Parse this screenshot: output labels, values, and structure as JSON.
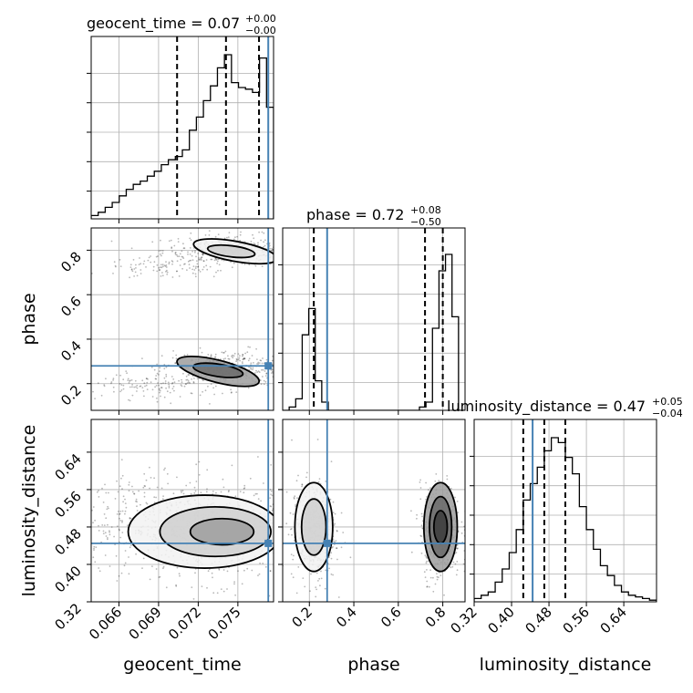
{
  "chart_data": {
    "type": "corner",
    "parameters": [
      "geocent_time",
      "phase",
      "luminosity_distance"
    ],
    "truth_color": "#4682b4",
    "titles": [
      {
        "param": "geocent_time",
        "label": "geocent_time = 0.07",
        "plus": "+0.00",
        "minus": "−0.00"
      },
      {
        "param": "phase",
        "label": "phase = 0.72",
        "plus": "+0.08",
        "minus": "−0.50"
      },
      {
        "param": "luminosity_distance",
        "label": "luminosity_distance = 0.47",
        "plus": "+0.05",
        "minus": "−0.04"
      }
    ],
    "axes": {
      "geocent_time": {
        "range": [
          0.0639,
          0.0777
        ],
        "ticks": [
          0.066,
          0.069,
          0.072,
          0.075
        ],
        "tick_labels": [
          "0.066",
          "0.069",
          "0.072",
          "0.075"
        ],
        "truth": 0.0773,
        "quantiles": [
          0.0704,
          0.0741,
          0.0766
        ]
      },
      "phase": {
        "range": [
          0.08,
          0.9
        ],
        "ticks": [
          0.2,
          0.4,
          0.6,
          0.8
        ],
        "tick_labels": [
          "0.2",
          "0.4",
          "0.6",
          "0.8"
        ],
        "truth": 0.28,
        "quantiles": [
          0.22,
          0.72,
          0.8
        ]
      },
      "luminosity_distance": {
        "range": [
          0.32,
          0.71
        ],
        "ticks": [
          0.32,
          0.4,
          0.48,
          0.56,
          0.64
        ],
        "tick_labels": [
          "0.32",
          "0.40",
          "0.48",
          "0.56",
          "0.64"
        ],
        "truth": 0.445,
        "quantiles": [
          0.425,
          0.47,
          0.515
        ]
      }
    },
    "histograms": {
      "geocent_time": [
        0.02,
        0.04,
        0.07,
        0.1,
        0.14,
        0.18,
        0.21,
        0.23,
        0.26,
        0.29,
        0.33,
        0.36,
        0.38,
        0.42,
        0.54,
        0.62,
        0.72,
        0.81,
        0.92,
        1.0,
        0.83,
        0.8,
        0.79,
        0.77,
        0.98,
        0.68
      ],
      "phase": [
        0.0,
        0.02,
        0.07,
        0.46,
        0.62,
        0.18,
        0.05,
        0.0,
        0.0,
        0.0,
        0.0,
        0.0,
        0.0,
        0.0,
        0.0,
        0.0,
        0.0,
        0.0,
        0.0,
        0.0,
        0.0,
        0.02,
        0.05,
        0.5,
        0.85,
        0.95,
        0.57,
        0.0
      ],
      "luminosity_distance": [
        0.02,
        0.04,
        0.06,
        0.12,
        0.2,
        0.3,
        0.44,
        0.62,
        0.72,
        0.82,
        0.92,
        1.0,
        0.97,
        0.88,
        0.78,
        0.58,
        0.44,
        0.32,
        0.22,
        0.16,
        0.1,
        0.06,
        0.04,
        0.03,
        0.02,
        0.01
      ]
    },
    "hist_yticks": [
      0.16,
      0.33,
      0.5,
      0.67,
      0.84
    ],
    "clusters": {
      "geocent_time_vs_phase": [
        {
          "x": 0.0745,
          "y": 0.8,
          "sx": 0.0026,
          "sy": 0.035,
          "n": 380
        },
        {
          "x": 0.0695,
          "y": 0.72,
          "sx": 0.0025,
          "sy": 0.025,
          "n": 100
        },
        {
          "x": 0.0743,
          "y": 0.27,
          "sx": 0.0025,
          "sy": 0.04,
          "n": 380
        },
        {
          "x": 0.0685,
          "y": 0.19,
          "sx": 0.0028,
          "sy": 0.03,
          "n": 130
        }
      ],
      "geocent_time_vs_luminosity_distance": [
        {
          "x": 0.0735,
          "y": 0.47,
          "sx": 0.0035,
          "sy": 0.055,
          "n": 650
        },
        {
          "x": 0.068,
          "y": 0.5,
          "sx": 0.0035,
          "sy": 0.05,
          "n": 250
        }
      ],
      "phase_vs_luminosity_distance": [
        {
          "x": 0.22,
          "y": 0.47,
          "sx": 0.05,
          "sy": 0.055,
          "n": 420
        },
        {
          "x": 0.79,
          "y": 0.47,
          "sx": 0.045,
          "sy": 0.05,
          "n": 480
        }
      ]
    },
    "contours": {
      "geocent_time_vs_phase": [
        {
          "cx": 0.0748,
          "cy": 0.795,
          "rx": 0.0032,
          "ry": 0.045,
          "rot": -0.18
        },
        {
          "cx": 0.0745,
          "cy": 0.795,
          "rx": 0.0018,
          "ry": 0.025,
          "rot": -0.12
        },
        {
          "cx": 0.0735,
          "cy": 0.255,
          "rx": 0.0032,
          "ry": 0.05,
          "rot": -0.25
        },
        {
          "cx": 0.0735,
          "cy": 0.26,
          "rx": 0.0019,
          "ry": 0.028,
          "rot": -0.15
        }
      ],
      "geocent_time_vs_luminosity_distance": [
        {
          "cx": 0.0725,
          "cy": 0.47,
          "rx": 0.0058,
          "ry": 0.078,
          "rot": 0.0
        },
        {
          "cx": 0.0733,
          "cy": 0.47,
          "rx": 0.0042,
          "ry": 0.053,
          "rot": 0.0
        },
        {
          "cx": 0.0738,
          "cy": 0.47,
          "rx": 0.0024,
          "ry": 0.028,
          "rot": 0.0
        }
      ],
      "phase_vs_luminosity_distance": [
        {
          "cx": 0.22,
          "cy": 0.48,
          "rx": 0.085,
          "ry": 0.095,
          "rot": 0.0
        },
        {
          "cx": 0.22,
          "cy": 0.48,
          "rx": 0.055,
          "ry": 0.06,
          "rot": 0.0
        },
        {
          "cx": 0.79,
          "cy": 0.48,
          "rx": 0.075,
          "ry": 0.095,
          "rot": 0.0
        },
        {
          "cx": 0.79,
          "cy": 0.48,
          "rx": 0.05,
          "ry": 0.065,
          "rot": 0.0
        },
        {
          "cx": 0.79,
          "cy": 0.48,
          "rx": 0.03,
          "ry": 0.035,
          "rot": 0.0
        }
      ]
    }
  }
}
